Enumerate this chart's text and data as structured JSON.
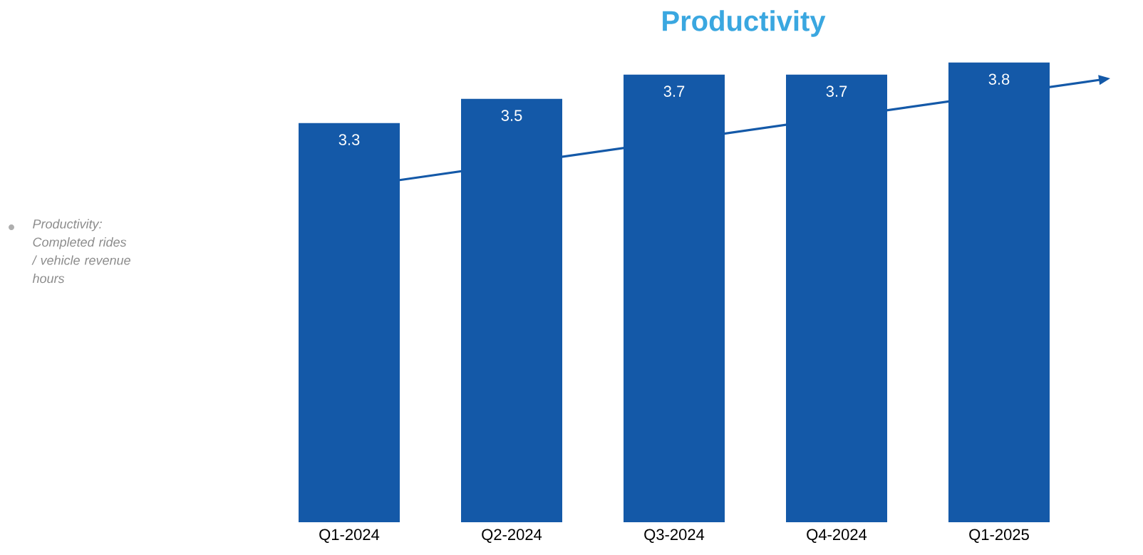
{
  "chart_data": {
    "type": "bar",
    "title": "Productivity",
    "categories": [
      "Q1-2024",
      "Q2-2024",
      "Q3-2024",
      "Q4-2024",
      "Q1-2025"
    ],
    "values": [
      3.3,
      3.5,
      3.7,
      3.7,
      3.8
    ],
    "color": "#1459a8",
    "tick_labels": "x",
    "data_labels": true,
    "annotations": [
      "Productivity: Completed rides / vehicle revenue hours"
    ]
  }
}
